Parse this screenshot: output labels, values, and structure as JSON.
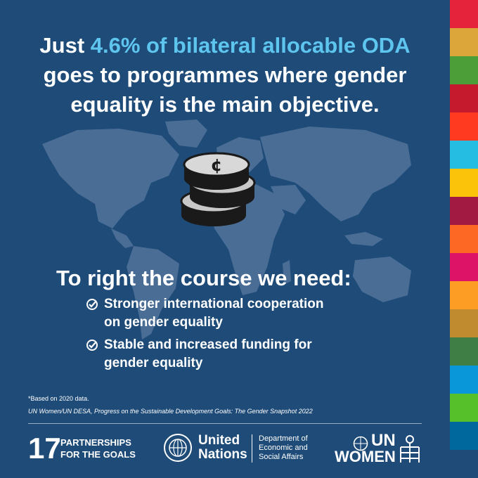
{
  "headline": {
    "prefix": "Just ",
    "highlight": "4.6% of bilateral allocable ODA",
    "line2": "goes to programmes where gender",
    "line3": "equality is the main objective."
  },
  "icon": "coin-stack-icon",
  "needs": {
    "title": "To right the course we need:",
    "items": [
      {
        "line1": "Stronger international cooperation",
        "line2": "on gender equality"
      },
      {
        "line1": "Stable and increased funding for",
        "line2": "gender equality"
      }
    ]
  },
  "footnote": "*Based on 2020 data.",
  "source": "UN Women/UN DESA, Progress on the Sustainable Development Goals: The Gender Snapshot 2022",
  "footer": {
    "goal_number": "17",
    "goal_line1": "PARTNERSHIPS",
    "goal_line2": "FOR THE GOALS",
    "un_line1": "United",
    "un_line2": "Nations",
    "desa_line1": "Department of",
    "desa_line2": "Economic and",
    "desa_line3": "Social Affairs",
    "unw_line1": "UN",
    "unw_line2": "WOMEN"
  },
  "colors": {
    "background": "#1e4b78",
    "highlight": "#5ec6ee",
    "map": "#4a6d96",
    "sdg_stripes": [
      "#e5243b",
      "#dda63a",
      "#4c9f38",
      "#c5192d",
      "#ff3a21",
      "#26bde2",
      "#fcc30b",
      "#a21942",
      "#fd6925",
      "#dd1367",
      "#fd9d24",
      "#bf8b2e",
      "#3f7e44",
      "#0a97d9",
      "#56c02b",
      "#00689d"
    ]
  }
}
